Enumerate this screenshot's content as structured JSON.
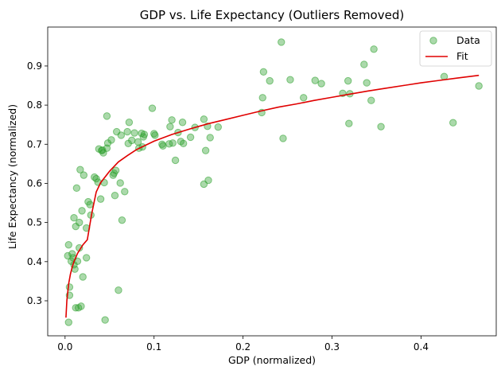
{
  "chart_data": {
    "type": "scatter",
    "title": "GDP vs. Life Expectancy (Outliers Removed)",
    "xlabel": "GDP (normalized)",
    "ylabel": "Life Expectancy (normalized)",
    "xlim": [
      -0.0195,
      0.4845
    ],
    "ylim": [
      0.2105,
      0.9995
    ],
    "xticks": [
      0.0,
      0.1,
      0.2,
      0.3,
      0.4
    ],
    "xtick_labels": [
      "0.0",
      "0.1",
      "0.2",
      "0.3",
      "0.4"
    ],
    "yticks": [
      0.3,
      0.4,
      0.5,
      0.6,
      0.7,
      0.8,
      0.9
    ],
    "ytick_labels": [
      "0.3",
      "0.4",
      "0.5",
      "0.6",
      "0.7",
      "0.8",
      "0.9"
    ],
    "grid": false,
    "legend_position": "top-right",
    "legend": [
      "Data",
      "Fit"
    ],
    "series": [
      {
        "name": "Data",
        "kind": "scatter",
        "color": "#2ca02c",
        "points": [
          [
            0.003,
            0.415
          ],
          [
            0.004,
            0.443
          ],
          [
            0.004,
            0.245
          ],
          [
            0.005,
            0.335
          ],
          [
            0.005,
            0.314
          ],
          [
            0.007,
            0.401
          ],
          [
            0.008,
            0.42
          ],
          [
            0.009,
            0.41
          ],
          [
            0.01,
            0.512
          ],
          [
            0.01,
            0.392
          ],
          [
            0.011,
            0.381
          ],
          [
            0.012,
            0.282
          ],
          [
            0.012,
            0.49
          ],
          [
            0.013,
            0.588
          ],
          [
            0.014,
            0.401
          ],
          [
            0.015,
            0.282
          ],
          [
            0.016,
            0.435
          ],
          [
            0.016,
            0.5
          ],
          [
            0.017,
            0.635
          ],
          [
            0.018,
            0.286
          ],
          [
            0.019,
            0.53
          ],
          [
            0.02,
            0.361
          ],
          [
            0.021,
            0.621
          ],
          [
            0.024,
            0.41
          ],
          [
            0.024,
            0.486
          ],
          [
            0.026,
            0.553
          ],
          [
            0.028,
            0.546
          ],
          [
            0.029,
            0.519
          ],
          [
            0.033,
            0.616
          ],
          [
            0.035,
            0.612
          ],
          [
            0.037,
            0.603
          ],
          [
            0.038,
            0.688
          ],
          [
            0.04,
            0.56
          ],
          [
            0.041,
            0.684
          ],
          [
            0.042,
            0.685
          ],
          [
            0.043,
            0.678
          ],
          [
            0.044,
            0.602
          ],
          [
            0.045,
            0.251
          ],
          [
            0.047,
            0.772
          ],
          [
            0.047,
            0.69
          ],
          [
            0.048,
            0.703
          ],
          [
            0.052,
            0.711
          ],
          [
            0.054,
            0.621
          ],
          [
            0.055,
            0.626
          ],
          [
            0.056,
            0.569
          ],
          [
            0.057,
            0.633
          ],
          [
            0.058,
            0.732
          ],
          [
            0.06,
            0.327
          ],
          [
            0.062,
            0.601
          ],
          [
            0.063,
            0.723
          ],
          [
            0.064,
            0.506
          ],
          [
            0.067,
            0.579
          ],
          [
            0.07,
            0.732
          ],
          [
            0.071,
            0.702
          ],
          [
            0.072,
            0.756
          ],
          [
            0.075,
            0.71
          ],
          [
            0.078,
            0.729
          ],
          [
            0.082,
            0.706
          ],
          [
            0.083,
            0.69
          ],
          [
            0.086,
            0.728
          ],
          [
            0.087,
            0.693
          ],
          [
            0.088,
            0.719
          ],
          [
            0.089,
            0.725
          ],
          [
            0.098,
            0.792
          ],
          [
            0.1,
            0.727
          ],
          [
            0.101,
            0.723
          ],
          [
            0.109,
            0.7
          ],
          [
            0.11,
            0.696
          ],
          [
            0.117,
            0.701
          ],
          [
            0.118,
            0.745
          ],
          [
            0.12,
            0.762
          ],
          [
            0.121,
            0.703
          ],
          [
            0.124,
            0.659
          ],
          [
            0.127,
            0.73
          ],
          [
            0.13,
            0.707
          ],
          [
            0.132,
            0.756
          ],
          [
            0.133,
            0.702
          ],
          [
            0.141,
            0.718
          ],
          [
            0.146,
            0.743
          ],
          [
            0.156,
            0.764
          ],
          [
            0.156,
            0.598
          ],
          [
            0.158,
            0.684
          ],
          [
            0.16,
            0.746
          ],
          [
            0.161,
            0.608
          ],
          [
            0.163,
            0.717
          ],
          [
            0.172,
            0.744
          ],
          [
            0.221,
            0.781
          ],
          [
            0.222,
            0.819
          ],
          [
            0.223,
            0.885
          ],
          [
            0.23,
            0.862
          ],
          [
            0.243,
            0.961
          ],
          [
            0.245,
            0.715
          ],
          [
            0.253,
            0.865
          ],
          [
            0.268,
            0.819
          ],
          [
            0.281,
            0.863
          ],
          [
            0.288,
            0.855
          ],
          [
            0.312,
            0.83
          ],
          [
            0.318,
            0.862
          ],
          [
            0.319,
            0.753
          ],
          [
            0.32,
            0.829
          ],
          [
            0.336,
            0.904
          ],
          [
            0.339,
            0.857
          ],
          [
            0.344,
            0.812
          ],
          [
            0.347,
            0.943
          ],
          [
            0.355,
            0.745
          ],
          [
            0.426,
            0.873
          ],
          [
            0.436,
            0.755
          ],
          [
            0.465,
            0.849
          ]
        ]
      },
      {
        "name": "Fit",
        "kind": "line",
        "color": "#e00000",
        "points": [
          [
            0.001,
            0.257
          ],
          [
            0.002,
            0.3
          ],
          [
            0.004,
            0.343
          ],
          [
            0.006,
            0.368
          ],
          [
            0.008,
            0.386
          ],
          [
            0.01,
            0.4
          ],
          [
            0.014,
            0.421
          ],
          [
            0.02,
            0.443
          ],
          [
            0.025,
            0.456
          ],
          [
            0.03,
            0.523
          ],
          [
            0.035,
            0.578
          ],
          [
            0.04,
            0.602
          ],
          [
            0.05,
            0.631
          ],
          [
            0.06,
            0.655
          ],
          [
            0.07,
            0.671
          ],
          [
            0.08,
            0.686
          ],
          [
            0.09,
            0.697
          ],
          [
            0.1,
            0.708
          ],
          [
            0.12,
            0.725
          ],
          [
            0.14,
            0.739
          ],
          [
            0.16,
            0.752
          ],
          [
            0.18,
            0.763
          ],
          [
            0.2,
            0.774
          ],
          [
            0.22,
            0.785
          ],
          [
            0.24,
            0.795
          ],
          [
            0.26,
            0.803
          ],
          [
            0.28,
            0.812
          ],
          [
            0.3,
            0.82
          ],
          [
            0.32,
            0.828
          ],
          [
            0.34,
            0.836
          ],
          [
            0.36,
            0.843
          ],
          [
            0.38,
            0.85
          ],
          [
            0.4,
            0.857
          ],
          [
            0.42,
            0.863
          ],
          [
            0.44,
            0.869
          ],
          [
            0.465,
            0.876
          ]
        ]
      }
    ]
  }
}
